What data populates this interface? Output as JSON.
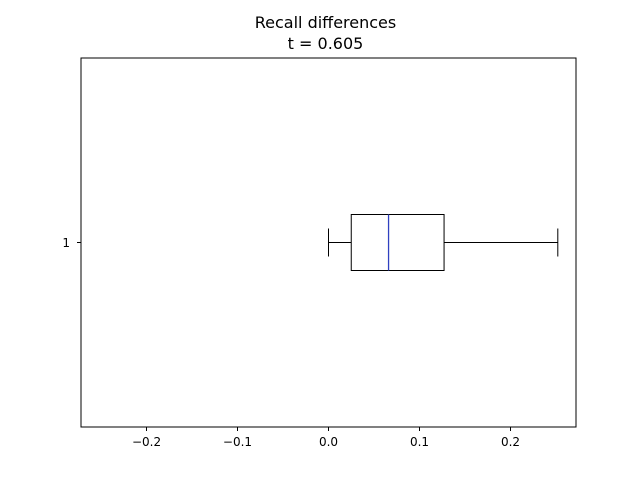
{
  "chart_data": {
    "type": "boxplot",
    "orientation": "horizontal",
    "title": "Recall differences",
    "subtitle": "t = 0.605",
    "xlim": [
      -0.272,
      0.272
    ],
    "xticks": [
      -0.2,
      -0.1,
      0.0,
      0.1,
      0.2
    ],
    "xtick_labels": [
      "−0.2",
      "−0.1",
      "0.0",
      "0.1",
      "0.2"
    ],
    "yticks": [
      1
    ],
    "ytick_labels": [
      "1"
    ],
    "grid": false,
    "boxes": [
      {
        "position": 1,
        "whisker_low": 0.0,
        "q1": 0.025,
        "median": 0.066,
        "q3": 0.127,
        "whisker_high": 0.252
      }
    ],
    "colors": {
      "box": "#000000",
      "median": "#3040c0"
    }
  }
}
